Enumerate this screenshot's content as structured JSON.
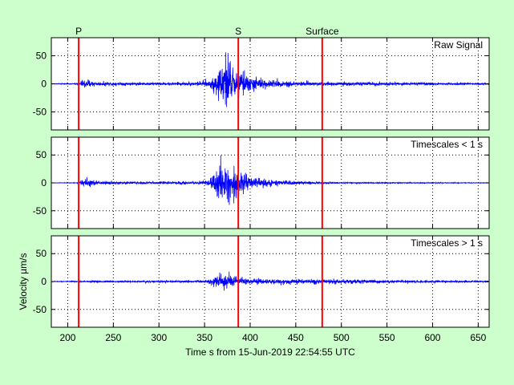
{
  "figure": {
    "background": "#ccffcc",
    "xlabel": "Time s from 15-Jun-2019 22:54:55 UTC",
    "ylabel": "Velocity µm/s"
  },
  "phases": [
    {
      "label": "P",
      "x": 212
    },
    {
      "label": "S",
      "x": 387
    },
    {
      "label": "Surface",
      "x": 479
    }
  ],
  "chart_data": [
    {
      "type": "line",
      "title": "Raw Signal",
      "xlim": [
        182,
        662
      ],
      "ylim": [
        -82,
        82
      ],
      "xticks": [
        200,
        250,
        300,
        350,
        400,
        450,
        500,
        550,
        600,
        650
      ],
      "yticks": [
        50,
        0,
        -50
      ],
      "grid": true,
      "line_color": "#0000ff",
      "marker_color": "#ff0000",
      "envelope": [
        [
          182,
          1
        ],
        [
          210,
          2
        ],
        [
          215,
          9
        ],
        [
          220,
          15
        ],
        [
          230,
          7
        ],
        [
          260,
          5
        ],
        [
          300,
          5
        ],
        [
          340,
          6
        ],
        [
          355,
          12
        ],
        [
          362,
          35
        ],
        [
          368,
          70
        ],
        [
          375,
          82
        ],
        [
          380,
          60
        ],
        [
          388,
          42
        ],
        [
          400,
          25
        ],
        [
          420,
          13
        ],
        [
          450,
          8
        ],
        [
          480,
          6
        ],
        [
          530,
          6
        ],
        [
          600,
          4
        ],
        [
          662,
          3
        ]
      ]
    },
    {
      "type": "line",
      "title": "Timescales < 1 s",
      "xlim": [
        182,
        662
      ],
      "ylim": [
        -82,
        82
      ],
      "xticks": [
        200,
        250,
        300,
        350,
        400,
        450,
        500,
        550,
        600,
        650
      ],
      "yticks": [
        50,
        0,
        -50
      ],
      "grid": true,
      "line_color": "#0000ff",
      "marker_color": "#ff0000",
      "envelope": [
        [
          182,
          0.5
        ],
        [
          210,
          1
        ],
        [
          215,
          9
        ],
        [
          220,
          16
        ],
        [
          230,
          7
        ],
        [
          260,
          5
        ],
        [
          300,
          4
        ],
        [
          340,
          5
        ],
        [
          355,
          10
        ],
        [
          362,
          35
        ],
        [
          368,
          70
        ],
        [
          374,
          82
        ],
        [
          380,
          55
        ],
        [
          388,
          38
        ],
        [
          400,
          20
        ],
        [
          420,
          11
        ],
        [
          450,
          6
        ],
        [
          480,
          3
        ],
        [
          530,
          2
        ],
        [
          600,
          1.5
        ],
        [
          662,
          1
        ]
      ]
    },
    {
      "type": "line",
      "title": "Timescales > 1 s",
      "xlim": [
        182,
        662
      ],
      "ylim": [
        -82,
        82
      ],
      "xticks": [
        200,
        250,
        300,
        350,
        400,
        450,
        500,
        550,
        600,
        650
      ],
      "yticks": [
        50,
        0,
        -50
      ],
      "grid": true,
      "line_color": "#0000ff",
      "marker_color": "#ff0000",
      "envelope": [
        [
          182,
          1
        ],
        [
          210,
          2
        ],
        [
          230,
          3
        ],
        [
          300,
          3
        ],
        [
          350,
          4
        ],
        [
          358,
          12
        ],
        [
          364,
          25
        ],
        [
          372,
          28
        ],
        [
          380,
          20
        ],
        [
          390,
          12
        ],
        [
          410,
          9
        ],
        [
          440,
          8
        ],
        [
          480,
          8
        ],
        [
          530,
          6
        ],
        [
          600,
          4
        ],
        [
          662,
          3
        ]
      ]
    }
  ]
}
